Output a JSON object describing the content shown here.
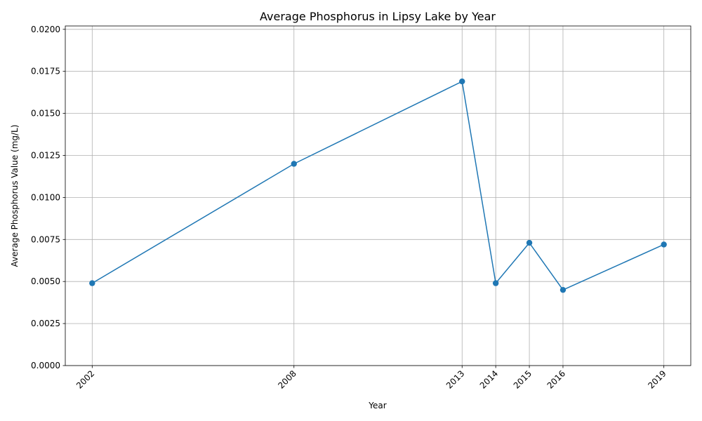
{
  "chart_data": {
    "type": "line",
    "title": "Average Phosphorus in Lipsy Lake by Year",
    "xlabel": "Year",
    "ylabel": "Average Phosphorus Value (mg/L)",
    "x": [
      2002,
      2008,
      2013,
      2014,
      2015,
      2016,
      2019
    ],
    "series": [
      {
        "values": [
          0.0049,
          0.012,
          0.0169,
          0.0049,
          0.0073,
          0.0045,
          0.0072
        ],
        "color": "#1f77b4",
        "marker": "circle"
      }
    ],
    "xticks": [
      "2002",
      "2008",
      "2013",
      "2014",
      "2015",
      "2016",
      "2019"
    ],
    "xlim": [
      2001.2,
      2019.8
    ],
    "ylim": [
      0,
      0.0202
    ],
    "yticks": [
      "0.0000",
      "0.0025",
      "0.0050",
      "0.0075",
      "0.0100",
      "0.0125",
      "0.0150",
      "0.0175",
      "0.0200"
    ],
    "ytick_values": [
      0,
      0.0025,
      0.005,
      0.0075,
      0.01,
      0.0125,
      0.015,
      0.0175,
      0.02
    ],
    "grid": true,
    "xtick_rotation": 45
  }
}
